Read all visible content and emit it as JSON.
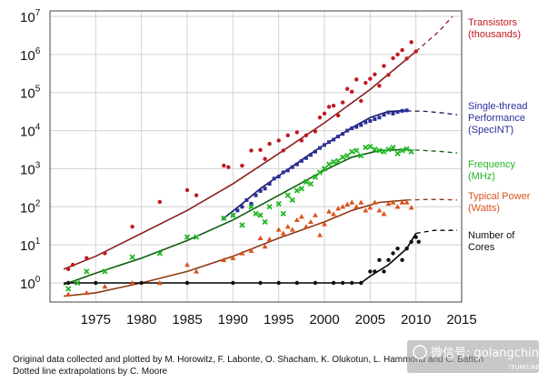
{
  "chart_data": {
    "type": "scatter",
    "x_label": "",
    "y_label": "",
    "y_scale": "log",
    "xlim": [
      1970,
      2015
    ],
    "ylim": [
      1,
      10000000
    ],
    "x_ticks": [
      "1975",
      "1980",
      "1985",
      "1990",
      "1995",
      "2000",
      "2005",
      "2010",
      "2015"
    ],
    "y_ticks": [
      {
        "base": "10",
        "exp": "0"
      },
      {
        "base": "10",
        "exp": "1"
      },
      {
        "base": "10",
        "exp": "2"
      },
      {
        "base": "10",
        "exp": "3"
      },
      {
        "base": "10",
        "exp": "4"
      },
      {
        "base": "10",
        "exp": "5"
      },
      {
        "base": "10",
        "exp": "6"
      },
      {
        "base": "10",
        "exp": "7"
      }
    ],
    "grid": true,
    "legend_position": "right",
    "series": [
      {
        "name": "Transistors (thousands)",
        "label_lines": [
          "Transistors",
          "(thousands)"
        ],
        "color": "#c0191f",
        "trend_color": "#8a1f1f",
        "marker": "circle",
        "trend": [
          [
            1971.5,
            2.3
          ],
          [
            1975,
            5
          ],
          [
            1980,
            20
          ],
          [
            1985,
            80
          ],
          [
            1990,
            400
          ],
          [
            1995,
            2500
          ],
          [
            2000,
            16000
          ],
          [
            2005,
            120000
          ],
          [
            2010,
            1200000
          ]
        ],
        "extrapolation": [
          [
            2010,
            1200000
          ],
          [
            2012.5,
            4000000
          ],
          [
            2014,
            10000000
          ]
        ],
        "points": [
          [
            1972,
            2.3
          ],
          [
            1972.5,
            3
          ],
          [
            1974,
            4.5
          ],
          [
            1976,
            6
          ],
          [
            1979,
            30
          ],
          [
            1982,
            134
          ],
          [
            1985,
            275
          ],
          [
            1986,
            200
          ],
          [
            1989,
            1200
          ],
          [
            1989.5,
            1100
          ],
          [
            1991,
            1200
          ],
          [
            1992,
            3000
          ],
          [
            1993,
            3100
          ],
          [
            1993.5,
            1800
          ],
          [
            1994,
            4500
          ],
          [
            1995,
            5500
          ],
          [
            1995.5,
            3000
          ],
          [
            1996,
            7500
          ],
          [
            1997,
            9000
          ],
          [
            1997.5,
            5500
          ],
          [
            1998,
            7500
          ],
          [
            1999,
            9500
          ],
          [
            1999.5,
            22000
          ],
          [
            2000,
            28000
          ],
          [
            2000.5,
            42000
          ],
          [
            2001,
            45000
          ],
          [
            2001.5,
            25000
          ],
          [
            2002,
            55000
          ],
          [
            2002.5,
            125000
          ],
          [
            2003,
            105000
          ],
          [
            2003.5,
            220000
          ],
          [
            2004,
            60000
          ],
          [
            2004.5,
            180000
          ],
          [
            2005,
            230000
          ],
          [
            2005.5,
            300000
          ],
          [
            2006,
            150000
          ],
          [
            2006.5,
            500000
          ],
          [
            2007,
            290000
          ],
          [
            2007.5,
            800000
          ],
          [
            2008,
            1000000
          ],
          [
            2008.5,
            1300000
          ],
          [
            2009,
            780000
          ],
          [
            2009.5,
            2100000
          ],
          [
            2010,
            1200000
          ]
        ]
      },
      {
        "name": "Single-thread Performance (SpecINT)",
        "label_lines": [
          "Single-thread",
          "Performance",
          "(SpecINT)"
        ],
        "color": "#2b2f9a",
        "trend_color": "#15175e",
        "marker": "square",
        "trend": [
          [
            1989,
            50
          ],
          [
            1991,
            120
          ],
          [
            1993,
            300
          ],
          [
            1995,
            650
          ],
          [
            1997,
            1400
          ],
          [
            1999,
            3000
          ],
          [
            2001,
            6000
          ],
          [
            2003,
            12000
          ],
          [
            2005,
            22000
          ],
          [
            2007,
            32000
          ],
          [
            2009,
            33000
          ]
        ],
        "extrapolation": [
          [
            2009,
            33000
          ],
          [
            2011,
            32000
          ],
          [
            2013,
            29000
          ],
          [
            2014.5,
            26000
          ]
        ],
        "points": [
          [
            1989,
            50
          ],
          [
            1990,
            60
          ],
          [
            1990.5,
            80
          ],
          [
            1991,
            100
          ],
          [
            1991.5,
            150
          ],
          [
            1992,
            120
          ],
          [
            1992.5,
            200
          ],
          [
            1993,
            260
          ],
          [
            1993.5,
            300
          ],
          [
            1994,
            400
          ],
          [
            1994.5,
            550
          ],
          [
            1995,
            620
          ],
          [
            1995.5,
            800
          ],
          [
            1996,
            900
          ],
          [
            1996.5,
            1100
          ],
          [
            1997,
            1300
          ],
          [
            1997.5,
            1600
          ],
          [
            1998,
            1900
          ],
          [
            1998.5,
            2300
          ],
          [
            1999,
            2800
          ],
          [
            1999.5,
            3500
          ],
          [
            2000,
            4200
          ],
          [
            2000.5,
            5000
          ],
          [
            2001,
            5800
          ],
          [
            2001.5,
            7000
          ],
          [
            2002,
            8200
          ],
          [
            2002.5,
            10000
          ],
          [
            2003,
            11500
          ],
          [
            2003.5,
            12500
          ],
          [
            2004,
            14000
          ],
          [
            2004.5,
            16500
          ],
          [
            2005,
            18000
          ],
          [
            2005.5,
            20000
          ],
          [
            2006,
            22000
          ],
          [
            2006.5,
            26000
          ],
          [
            2007,
            30000
          ],
          [
            2007.5,
            28000
          ],
          [
            2008,
            31000
          ],
          [
            2008.5,
            33000
          ],
          [
            2009,
            34000
          ]
        ]
      },
      {
        "name": "Frequency (MHz)",
        "label_lines": [
          "Frequency",
          "(MHz)"
        ],
        "color": "#22b722",
        "trend_color": "#0c5e0c",
        "marker": "x",
        "trend": [
          [
            1971.5,
            0.9
          ],
          [
            1975,
            1.8
          ],
          [
            1980,
            4.5
          ],
          [
            1985,
            13
          ],
          [
            1990,
            45
          ],
          [
            1995,
            200
          ],
          [
            2000,
            900
          ],
          [
            2003,
            2000
          ],
          [
            2006,
            3000
          ],
          [
            2009,
            3200
          ]
        ],
        "extrapolation": [
          [
            2009,
            3200
          ],
          [
            2011,
            3000
          ],
          [
            2013,
            2800
          ],
          [
            2014.5,
            2600
          ]
        ],
        "points": [
          [
            1972,
            0.7
          ],
          [
            1973,
            1
          ],
          [
            1974,
            2
          ],
          [
            1976,
            2
          ],
          [
            1979,
            4.77
          ],
          [
            1982,
            6
          ],
          [
            1985,
            16
          ],
          [
            1986,
            16
          ],
          [
            1989,
            50
          ],
          [
            1990,
            60
          ],
          [
            1991,
            33
          ],
          [
            1992,
            100
          ],
          [
            1992.5,
            66
          ],
          [
            1993,
            60
          ],
          [
            1993.5,
            40
          ],
          [
            1994,
            100
          ],
          [
            1995,
            120
          ],
          [
            1995.5,
            66
          ],
          [
            1996,
            200
          ],
          [
            1996.5,
            150
          ],
          [
            1997,
            266
          ],
          [
            1997.5,
            300
          ],
          [
            1998,
            450
          ],
          [
            1998.5,
            400
          ],
          [
            1999,
            600
          ],
          [
            1999.5,
            800
          ],
          [
            2000,
            1000
          ],
          [
            2000.5,
            1300
          ],
          [
            2001,
            1500
          ],
          [
            2001.5,
            1600
          ],
          [
            2002,
            2000
          ],
          [
            2002.5,
            2200
          ],
          [
            2003,
            2800
          ],
          [
            2003.5,
            3000
          ],
          [
            2004,
            2200
          ],
          [
            2004.5,
            3600
          ],
          [
            2005,
            3800
          ],
          [
            2005.5,
            3200
          ],
          [
            2006,
            3000
          ],
          [
            2006.5,
            2800
          ],
          [
            2007,
            3200
          ],
          [
            2007.5,
            3600
          ],
          [
            2008,
            2500
          ],
          [
            2008.5,
            3000
          ],
          [
            2009,
            3300
          ],
          [
            2009.5,
            2800
          ]
        ]
      },
      {
        "name": "Typical Power (Watts)",
        "label_lines": [
          "Typical Power",
          "(Watts)"
        ],
        "color": "#d9541c",
        "trend_color": "#8e3a12",
        "marker": "triangle",
        "trend": [
          [
            1971.5,
            0.45
          ],
          [
            1975,
            0.55
          ],
          [
            1980,
            1
          ],
          [
            1985,
            2
          ],
          [
            1990,
            5
          ],
          [
            1995,
            15
          ],
          [
            2000,
            40
          ],
          [
            2003,
            80
          ],
          [
            2006,
            130
          ],
          [
            2009,
            150
          ]
        ],
        "extrapolation": [
          [
            2009,
            150
          ],
          [
            2011,
            155
          ],
          [
            2013,
            155
          ],
          [
            2014.5,
            150
          ]
        ],
        "points": [
          [
            1972,
            0.5
          ],
          [
            1974,
            0.55
          ],
          [
            1976,
            0.8
          ],
          [
            1979,
            1
          ],
          [
            1982,
            1
          ],
          [
            1985,
            3
          ],
          [
            1986,
            2
          ],
          [
            1989,
            4
          ],
          [
            1990,
            4.5
          ],
          [
            1991,
            6
          ],
          [
            1992,
            7
          ],
          [
            1993,
            15
          ],
          [
            1993.5,
            9
          ],
          [
            1994,
            14
          ],
          [
            1995,
            25
          ],
          [
            1995.5,
            20
          ],
          [
            1996,
            30
          ],
          [
            1996.5,
            25
          ],
          [
            1997,
            45
          ],
          [
            1997.5,
            55
          ],
          [
            1998,
            30
          ],
          [
            1998.5,
            40
          ],
          [
            1999,
            60
          ],
          [
            1999.5,
            18
          ],
          [
            2000,
            35
          ],
          [
            2000.5,
            75
          ],
          [
            2001,
            64
          ],
          [
            2001.5,
            90
          ],
          [
            2002,
            100
          ],
          [
            2002.5,
            115
          ],
          [
            2003,
            130
          ],
          [
            2003.5,
            100
          ],
          [
            2004,
            130
          ],
          [
            2004.5,
            80
          ],
          [
            2005,
            95
          ],
          [
            2005.5,
            130
          ],
          [
            2006,
            80
          ],
          [
            2006.5,
            65
          ],
          [
            2007,
            120
          ],
          [
            2007.5,
            130
          ],
          [
            2008,
            100
          ],
          [
            2008.5,
            130
          ],
          [
            2009,
            130
          ],
          [
            2009.5,
            95
          ]
        ]
      },
      {
        "name": "Number of Cores",
        "label_lines": [
          "Number of",
          "Cores"
        ],
        "color": "#111111",
        "trend_color": "#000000",
        "marker": "circle",
        "trend": [
          [
            1971.5,
            1
          ],
          [
            2004,
            1
          ],
          [
            2005,
            1.5
          ],
          [
            2007,
            3
          ],
          [
            2009,
            8
          ],
          [
            2010,
            20
          ]
        ],
        "extrapolation": [
          [
            2010,
            20
          ],
          [
            2012,
            24
          ],
          [
            2014.5,
            24
          ]
        ],
        "points": [
          [
            1972,
            1
          ],
          [
            1975,
            1
          ],
          [
            1980,
            1
          ],
          [
            1985,
            1
          ],
          [
            1990,
            1
          ],
          [
            1993,
            1
          ],
          [
            1995,
            1
          ],
          [
            1997,
            1
          ],
          [
            1999,
            1
          ],
          [
            2001,
            1
          ],
          [
            2002,
            1
          ],
          [
            2003,
            1
          ],
          [
            2004,
            1
          ],
          [
            2005,
            2
          ],
          [
            2005.5,
            2
          ],
          [
            2006,
            4
          ],
          [
            2006.5,
            2
          ],
          [
            2007,
            4
          ],
          [
            2007.5,
            6
          ],
          [
            2008,
            8
          ],
          [
            2008.5,
            4
          ],
          [
            2009,
            8
          ],
          [
            2009.5,
            12
          ],
          [
            2010,
            16
          ],
          [
            2010.3,
            12
          ]
        ]
      }
    ]
  },
  "footnote": {
    "line1": "Original data collected and plotted by M. Horowitz, F. Labonte, O. Shacham, K. Olukotun, L. Hammond and C. Batten",
    "line2": "Dotted line extrapolations by C. Moore"
  },
  "watermark": {
    "text": "微信号: golangchina",
    "small": "ITUMS.NET"
  }
}
